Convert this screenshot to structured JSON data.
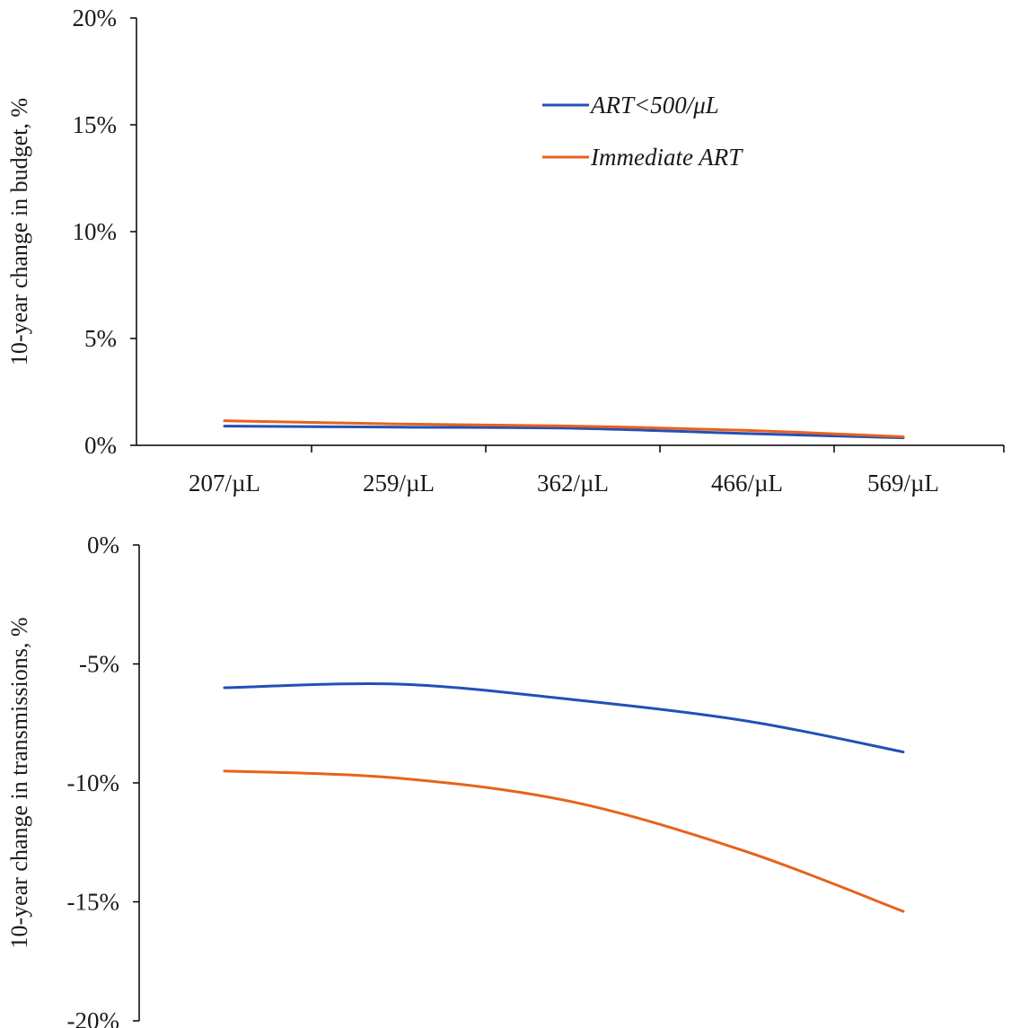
{
  "chart_data": [
    {
      "type": "line",
      "x": [
        "207/µL",
        "259/µL",
        "362/µL",
        "466/µL",
        "569/µL"
      ],
      "series": [
        {
          "name": "ART<500/μL",
          "color": "#2150b8",
          "values": [
            0.9,
            0.85,
            0.8,
            0.55,
            0.35
          ]
        },
        {
          "name": "Immediate ART",
          "color": "#e8621c",
          "values": [
            1.15,
            1.0,
            0.9,
            0.7,
            0.4
          ]
        }
      ],
      "ylabel": "10-year change in budget, %",
      "ylim": [
        0,
        20
      ],
      "yticks": [
        0,
        5,
        10,
        15,
        20
      ],
      "ytick_labels": [
        "0%",
        "5%",
        "10%",
        "15%",
        "20%"
      ],
      "legend": "top-right",
      "grid": false
    },
    {
      "type": "line",
      "series": [
        {
          "color": "#2150b8",
          "values": [
            -6.0,
            -5.85,
            -6.5,
            -7.4,
            -8.7
          ]
        },
        {
          "color": "#e8621c",
          "values": [
            -9.5,
            -9.8,
            -10.8,
            -12.9,
            -15.4
          ]
        }
      ],
      "ylabel": "10-year change in transmissions, %",
      "ylim": [
        -20,
        0
      ],
      "yticks": [
        0,
        -5,
        -10,
        -15,
        -20
      ],
      "ytick_labels": [
        "0%",
        "-5%",
        "-10%",
        "-15%",
        "-20%"
      ],
      "grid": false
    }
  ]
}
